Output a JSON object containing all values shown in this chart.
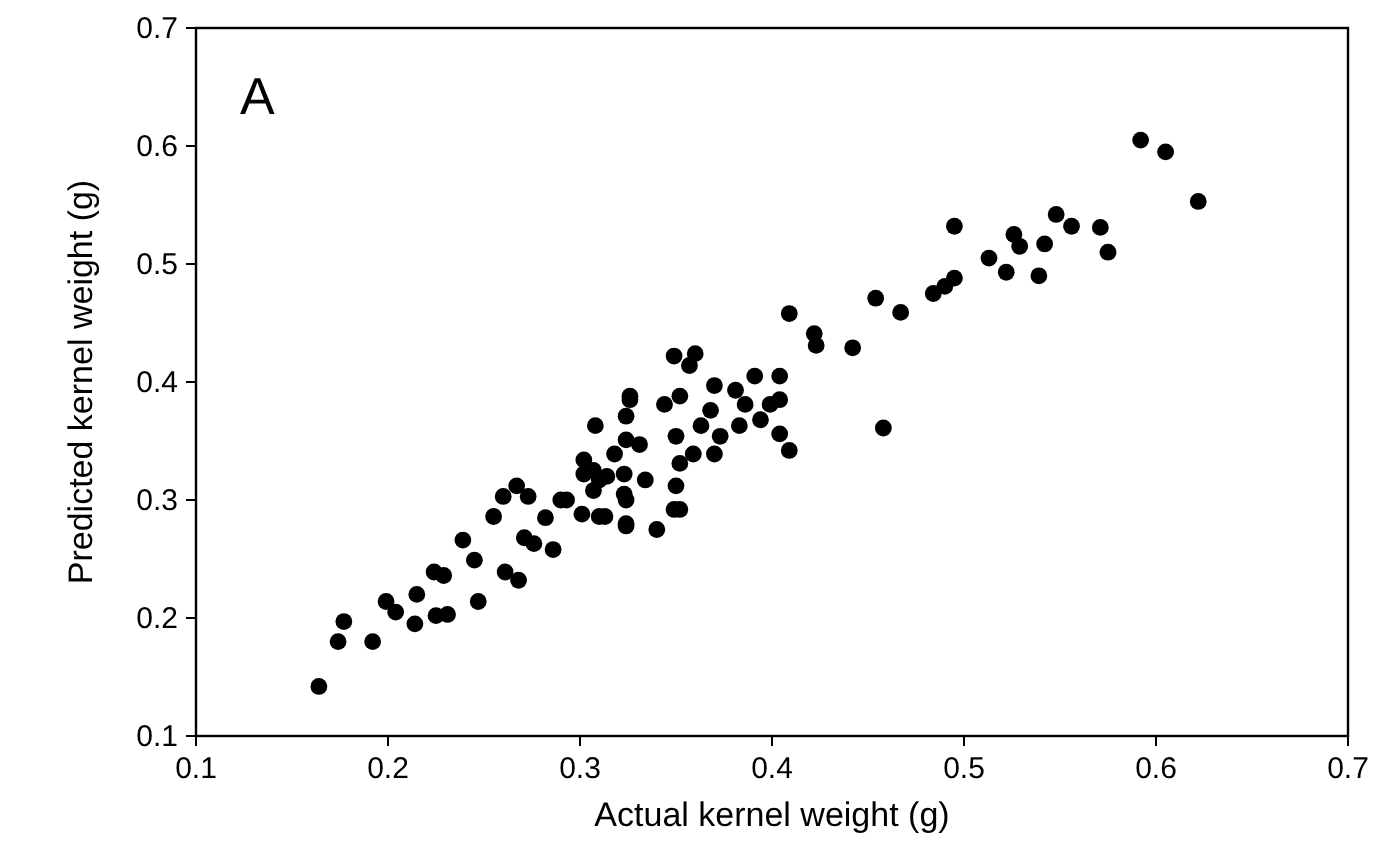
{
  "chart_data": {
    "type": "scatter",
    "xlabel": "Actual kernel weight  (g)",
    "ylabel": "Predicted kernel weight  (g)",
    "annotations": [
      "A"
    ],
    "xlim": [
      0.1,
      0.7
    ],
    "ylim": [
      0.1,
      0.7
    ],
    "xticks": [
      0.1,
      0.2,
      0.3,
      0.4,
      0.5,
      0.6,
      0.7
    ],
    "yticks": [
      0.1,
      0.2,
      0.3,
      0.4,
      0.5,
      0.6,
      0.7
    ],
    "grid": false,
    "marker": "circle",
    "series": [
      {
        "color": "#000000",
        "x": [
          0.164,
          0.174,
          0.177,
          0.192,
          0.199,
          0.204,
          0.214,
          0.215,
          0.224,
          0.229,
          0.225,
          0.231,
          0.239,
          0.245,
          0.247,
          0.261,
          0.268,
          0.255,
          0.26,
          0.267,
          0.273,
          0.271,
          0.276,
          0.286,
          0.282,
          0.29,
          0.301,
          0.31,
          0.308,
          0.302,
          0.307,
          0.314,
          0.324,
          0.326,
          0.323,
          0.324,
          0.409,
          0.422,
          0.423,
          0.442,
          0.349,
          0.36,
          0.357,
          0.37,
          0.381,
          0.391,
          0.404,
          0.326,
          0.344,
          0.352,
          0.368,
          0.386,
          0.399,
          0.404,
          0.324,
          0.35,
          0.363,
          0.373,
          0.383,
          0.394,
          0.404,
          0.318,
          0.331,
          0.359,
          0.37,
          0.409,
          0.302,
          0.31,
          0.323,
          0.334,
          0.352,
          0.293,
          0.307,
          0.324,
          0.35,
          0.352,
          0.313,
          0.324,
          0.34,
          0.349,
          0.592,
          0.605,
          0.622,
          0.495,
          0.526,
          0.529,
          0.542,
          0.548,
          0.556,
          0.571,
          0.575,
          0.513,
          0.522,
          0.539,
          0.495,
          0.49,
          0.484,
          0.454,
          0.467,
          0.458
        ],
        "values": [
          0.142,
          0.18,
          0.197,
          0.18,
          0.214,
          0.205,
          0.195,
          0.22,
          0.239,
          0.236,
          0.202,
          0.203,
          0.266,
          0.249,
          0.214,
          0.239,
          0.232,
          0.286,
          0.303,
          0.312,
          0.303,
          0.268,
          0.263,
          0.258,
          0.285,
          0.3,
          0.288,
          0.286,
          0.363,
          0.334,
          0.325,
          0.32,
          0.351,
          0.385,
          0.305,
          0.28,
          0.458,
          0.441,
          0.431,
          0.429,
          0.422,
          0.424,
          0.414,
          0.397,
          0.393,
          0.405,
          0.405,
          0.388,
          0.381,
          0.388,
          0.376,
          0.381,
          0.381,
          0.385,
          0.371,
          0.354,
          0.363,
          0.354,
          0.363,
          0.368,
          0.356,
          0.339,
          0.347,
          0.339,
          0.339,
          0.342,
          0.322,
          0.317,
          0.322,
          0.317,
          0.331,
          0.3,
          0.308,
          0.3,
          0.312,
          0.292,
          0.286,
          0.278,
          0.275,
          0.292,
          0.605,
          0.595,
          0.553,
          0.532,
          0.525,
          0.515,
          0.517,
          0.542,
          0.532,
          0.531,
          0.51,
          0.505,
          0.493,
          0.49,
          0.488,
          0.481,
          0.475,
          0.471,
          0.459,
          0.361
        ]
      }
    ]
  }
}
